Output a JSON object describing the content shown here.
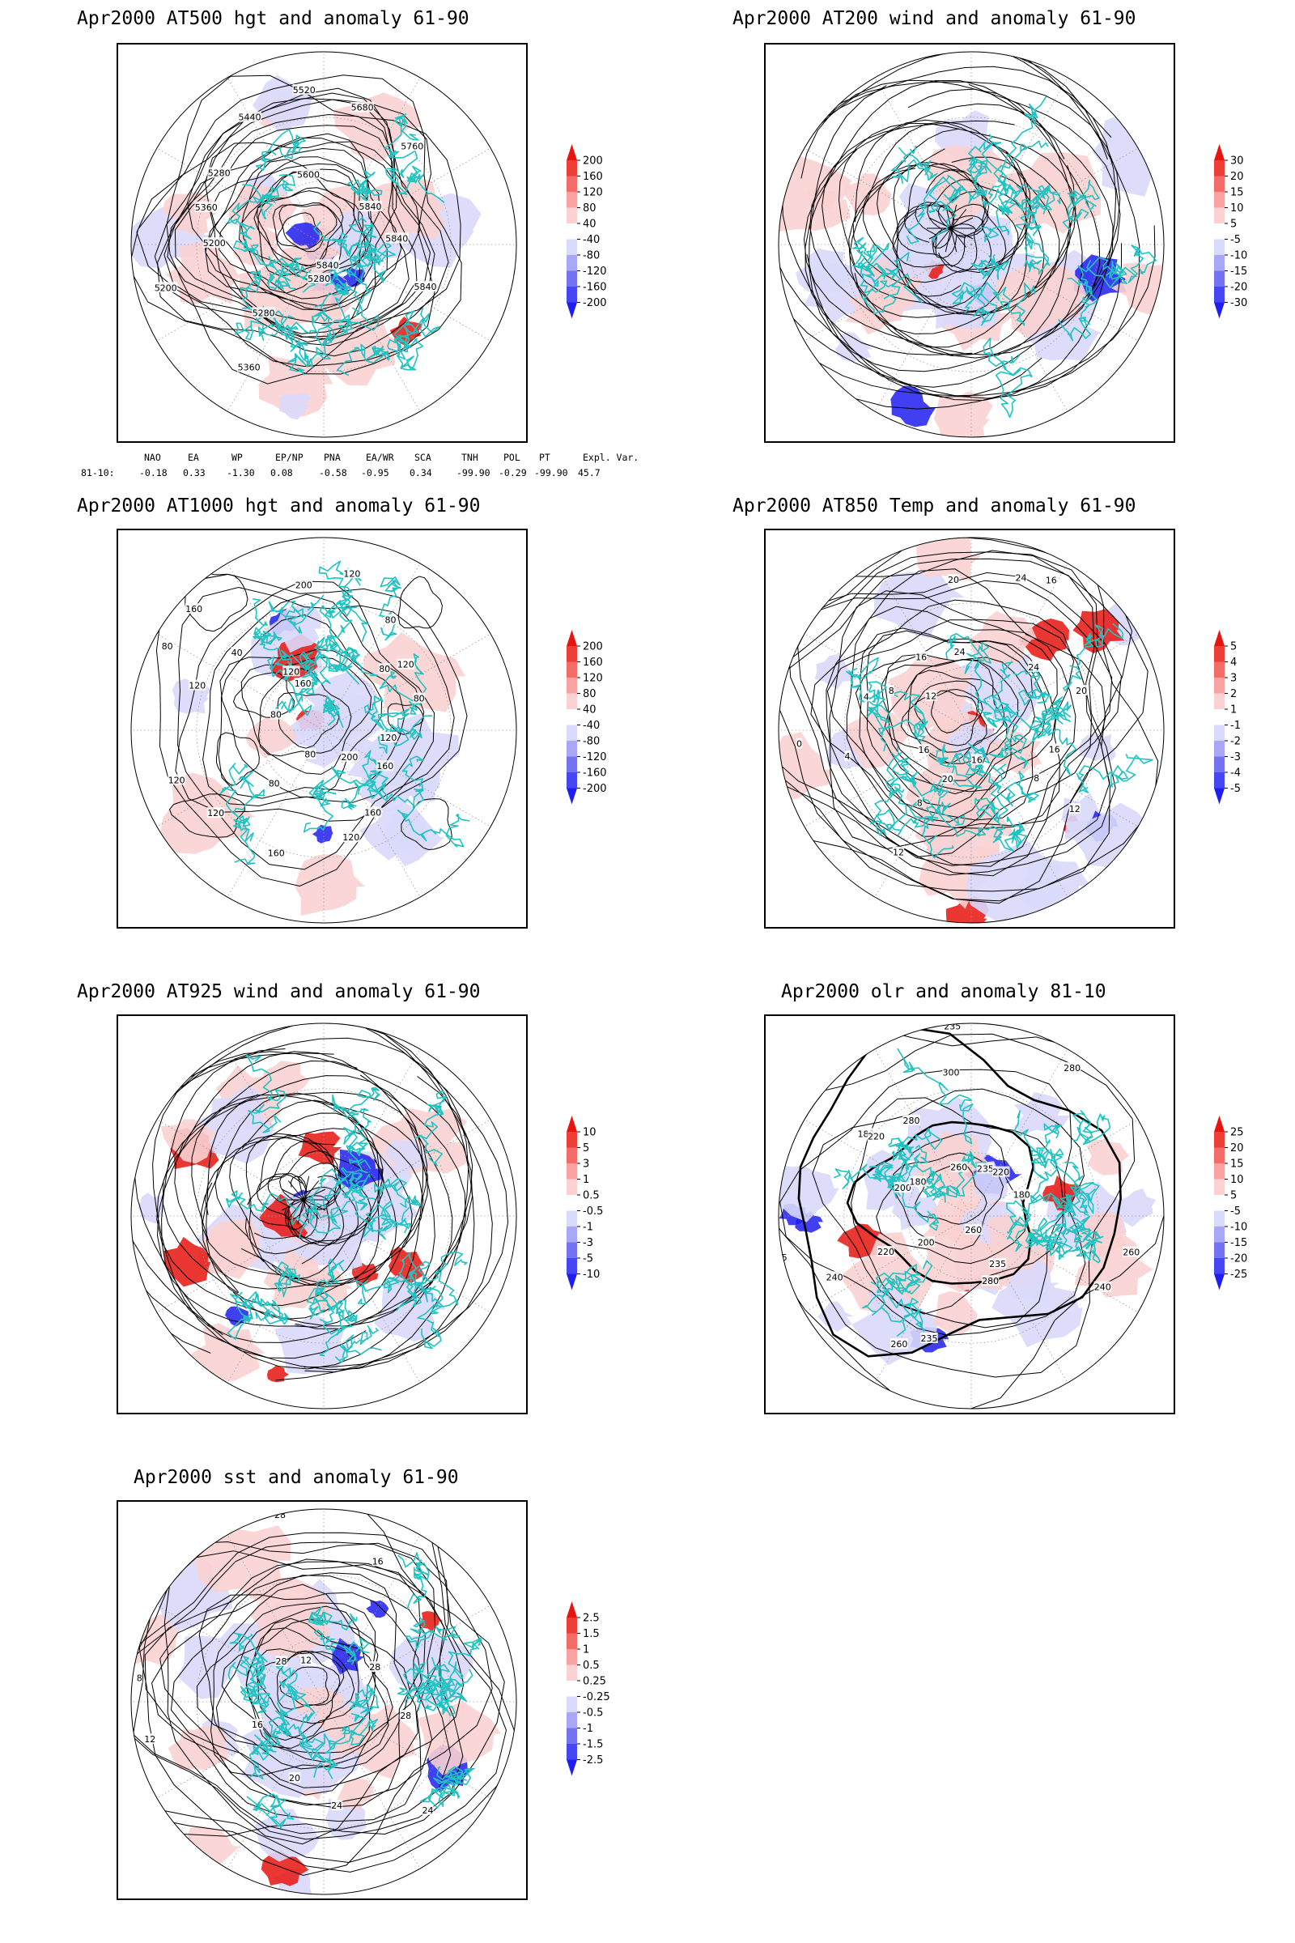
{
  "panels": [
    {
      "id": "at500",
      "title": "Apr2000 AT500 hgt and anomaly 61-90",
      "colorbar": [
        "200",
        "160",
        "120",
        "80",
        "40",
        "-40",
        "-80",
        "-120",
        "-160",
        "-200"
      ],
      "contour_labels": [
        "5840",
        "5840",
        "5840",
        "5280",
        "5360",
        "5280",
        "5200",
        "5200",
        "5360",
        "5280",
        "5440",
        "5520",
        "5600",
        "5680",
        "5760",
        "5840"
      ]
    },
    {
      "id": "at200",
      "title": "Apr2000 AT200 wind and anomaly 61-90",
      "colorbar": [
        "30",
        "20",
        "15",
        "10",
        "5",
        "-5",
        "-10",
        "-15",
        "-20",
        "-30"
      ],
      "contour_labels": []
    },
    {
      "id": "at1000",
      "title": "Apr2000 AT1000 hgt and anomaly 61-90",
      "colorbar": [
        "200",
        "160",
        "120",
        "80",
        "40",
        "-40",
        "-80",
        "-120",
        "-160",
        "-200"
      ],
      "contour_labels": [
        "120",
        "160",
        "200",
        "160",
        "120",
        "80",
        "160",
        "80",
        "120",
        "120",
        "80",
        "120",
        "80",
        "160",
        "40",
        "120",
        "160",
        "200",
        "120",
        "80",
        "80",
        "120",
        "80"
      ]
    },
    {
      "id": "at850",
      "title": "Apr2000 AT850 Temp and anomaly 61-90",
      "colorbar": [
        "5",
        "4",
        "3",
        "2",
        "1",
        "-1",
        "-2",
        "-3",
        "-4",
        "-5"
      ],
      "contour_labels": [
        "16",
        "12",
        "8",
        "16",
        "20",
        "8",
        "12",
        "16",
        "4",
        "0",
        "4",
        "8",
        "12",
        "16",
        "20",
        "24",
        "24",
        "16",
        "24",
        "20"
      ]
    },
    {
      "id": "at925",
      "title": "Apr2000 AT925 wind and anomaly 61-90",
      "colorbar": [
        "10",
        "5",
        "3",
        "1",
        "0.5",
        "-0.5",
        "-1",
        "-3",
        "-5",
        "-10"
      ],
      "contour_labels": []
    },
    {
      "id": "olr",
      "title": "Apr2000 olr and anomaly 81-10",
      "colorbar": [
        "25",
        "20",
        "15",
        "10",
        "5",
        "-5",
        "-10",
        "-15",
        "-20",
        "-25"
      ],
      "contour_labels": [
        "260",
        "240",
        "235",
        "260",
        "280",
        "235",
        "260",
        "200",
        "220",
        "240",
        "235",
        "200",
        "180",
        "180",
        "220",
        "280",
        "300",
        "235",
        "260",
        "280",
        "235",
        "220",
        "180"
      ]
    },
    {
      "id": "sst",
      "title": "Apr2000 sst and anomaly 61-90",
      "colorbar": [
        "2.5",
        "1.5",
        "1",
        "0.5",
        "0.25",
        "-0.25",
        "-0.5",
        "-1",
        "-1.5",
        "-2.5"
      ],
      "contour_labels": [
        "28",
        "24",
        "24",
        "20",
        "16",
        "12",
        "8",
        "28",
        "28",
        "12",
        "16",
        "28"
      ]
    }
  ],
  "indices": {
    "header": [
      "NAO",
      "EA",
      "WP",
      "EP/NP",
      "PNA",
      "EA/WR",
      "SCA",
      "TNH",
      "POL",
      "PT",
      "Expl. Var."
    ],
    "row_label": "81-10:",
    "values": [
      "-0.18",
      "0.33",
      "-1.30",
      "0.08",
      "-0.58",
      "-0.95",
      "0.34",
      "-99.90",
      "-0.29",
      "-99.90",
      "45.7"
    ]
  },
  "colors": {
    "positive_strong": "#e8140e",
    "positive_weak": "#fbd2d2",
    "negative_strong": "#1e1ef0",
    "negative_weak": "#d9d9fb",
    "coastline": "#21c2c2",
    "contour": "#000000"
  }
}
